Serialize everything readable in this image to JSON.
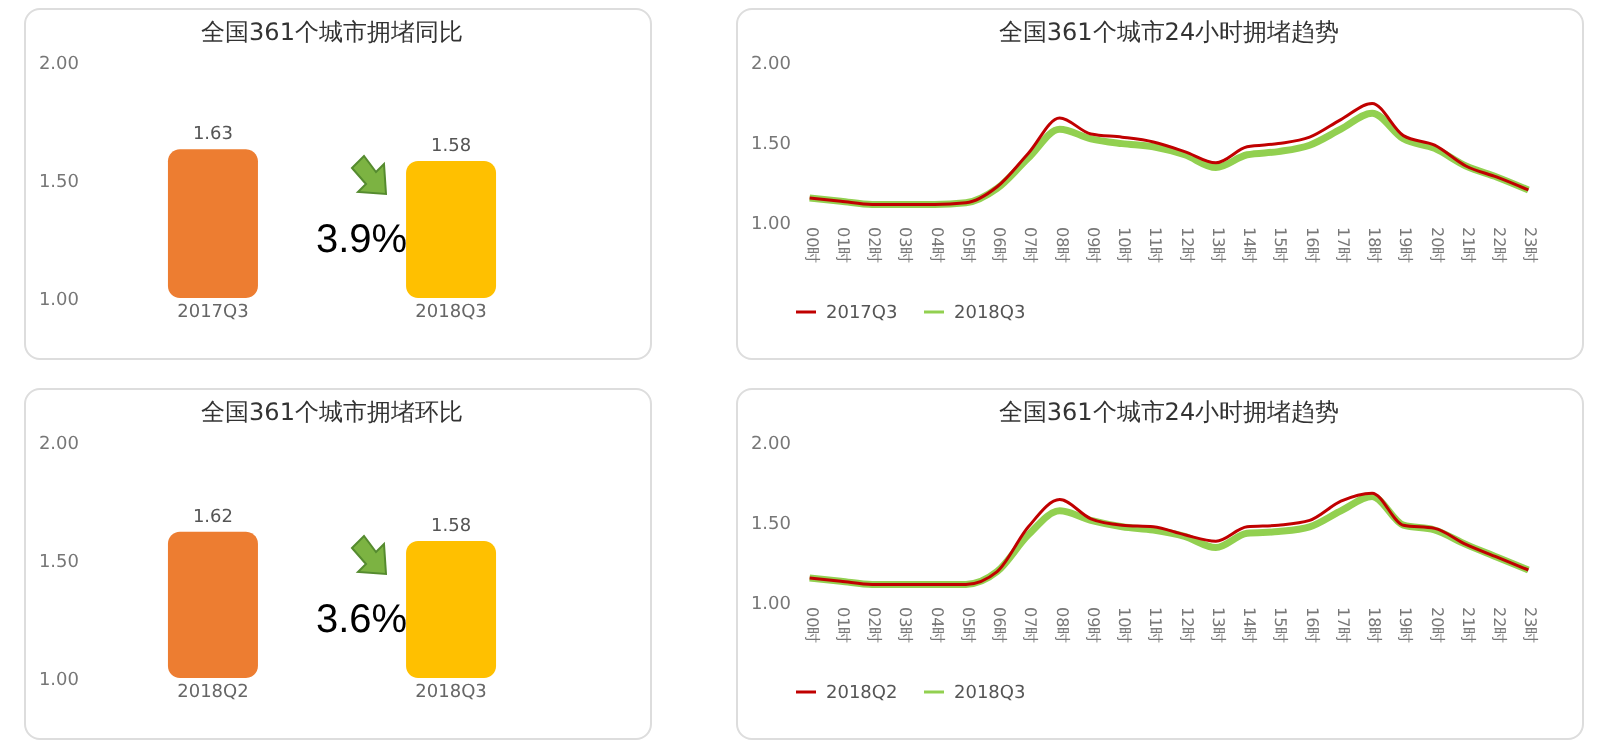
{
  "chart_data": [
    {
      "type": "bar",
      "title": "全国361个城市拥堵同比",
      "categories": [
        "2017Q3",
        "2018Q3"
      ],
      "values": [
        1.63,
        1.58
      ],
      "colors": [
        "#ed7d31",
        "#ffc000"
      ],
      "ylim": [
        1,
        2
      ],
      "yticks": [
        {
          "value": 1,
          "label": "1.00"
        },
        {
          "value": 1.5,
          "label": "1.50"
        },
        {
          "value": 2,
          "label": "2.00"
        }
      ],
      "data_labels": true,
      "annotations": [
        "3.9%"
      ]
    },
    {
      "type": "line",
      "title": "全国361个城市24小时拥堵趋势",
      "categories": [
        "00时",
        "01时",
        "02时",
        "03时",
        "04时",
        "05时",
        "06时",
        "07时",
        "08时",
        "09时",
        "10时",
        "11时",
        "12时",
        "13时",
        "14时",
        "15时",
        "16时",
        "17时",
        "18时",
        "19时",
        "20时",
        "21时",
        "22时",
        "23时"
      ],
      "series": [
        {
          "name": "2017Q3",
          "color": "#c00000",
          "values": [
            1.15,
            1.13,
            1.11,
            1.11,
            1.11,
            1.12,
            1.22,
            1.43,
            1.65,
            1.55,
            1.53,
            1.5,
            1.44,
            1.37,
            1.47,
            1.49,
            1.53,
            1.64,
            1.74,
            1.54,
            1.48,
            1.35,
            1.28,
            1.2
          ]
        },
        {
          "name": "2018Q3",
          "color": "#92d050",
          "values": [
            1.15,
            1.13,
            1.11,
            1.11,
            1.11,
            1.12,
            1.21,
            1.4,
            1.58,
            1.52,
            1.49,
            1.47,
            1.42,
            1.34,
            1.42,
            1.44,
            1.48,
            1.58,
            1.68,
            1.52,
            1.46,
            1.35,
            1.28,
            1.2
          ]
        }
      ],
      "ylim": [
        1,
        2
      ],
      "yticks": [
        {
          "value": 1,
          "label": "1.00"
        },
        {
          "value": 1.5,
          "label": "1.50"
        },
        {
          "value": 2,
          "label": "2.00"
        }
      ],
      "legend": "bottom",
      "line_style": "solid"
    },
    {
      "type": "bar",
      "title": "全国361个城市拥堵环比",
      "categories": [
        "2018Q2",
        "2018Q3"
      ],
      "values": [
        1.62,
        1.58
      ],
      "colors": [
        "#ed7d31",
        "#ffc000"
      ],
      "ylim": [
        1,
        2
      ],
      "yticks": [
        {
          "value": 1,
          "label": "1.00"
        },
        {
          "value": 1.5,
          "label": "1.50"
        },
        {
          "value": 2,
          "label": "2.00"
        }
      ],
      "data_labels": true,
      "annotations": [
        "3.6%"
      ]
    },
    {
      "type": "line",
      "title": "全国361个城市24小时拥堵趋势",
      "categories": [
        "00时",
        "01时",
        "02时",
        "03时",
        "04时",
        "05时",
        "06时",
        "07时",
        "08时",
        "09时",
        "10时",
        "11时",
        "12时",
        "13时",
        "14时",
        "15时",
        "16时",
        "17时",
        "18时",
        "19时",
        "20时",
        "21时",
        "22时",
        "23时"
      ],
      "series": [
        {
          "name": "2018Q2",
          "color": "#c00000",
          "values": [
            1.15,
            1.13,
            1.11,
            1.11,
            1.11,
            1.11,
            1.19,
            1.47,
            1.64,
            1.52,
            1.48,
            1.47,
            1.42,
            1.38,
            1.47,
            1.48,
            1.51,
            1.63,
            1.68,
            1.48,
            1.46,
            1.36,
            1.28,
            1.2
          ]
        },
        {
          "name": "2018Q3",
          "color": "#92d050",
          "values": [
            1.15,
            1.13,
            1.11,
            1.11,
            1.11,
            1.11,
            1.19,
            1.42,
            1.57,
            1.51,
            1.47,
            1.45,
            1.41,
            1.34,
            1.43,
            1.44,
            1.47,
            1.57,
            1.66,
            1.48,
            1.45,
            1.36,
            1.28,
            1.2
          ]
        }
      ],
      "ylim": [
        1,
        2
      ],
      "yticks": [
        {
          "value": 1,
          "label": "1.00"
        },
        {
          "value": 1.5,
          "label": "1.50"
        },
        {
          "value": 2,
          "label": "2.00"
        }
      ],
      "legend": "bottom",
      "line_style": "solid"
    }
  ]
}
